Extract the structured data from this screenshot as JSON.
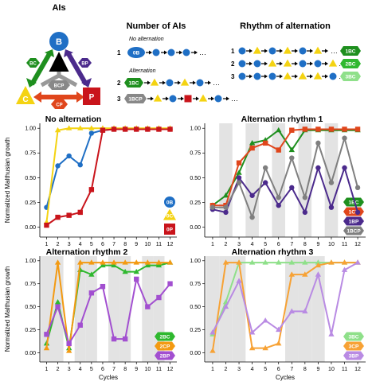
{
  "panels_header": {
    "ais_title": "AIs",
    "number_title": "Number of AIs",
    "rhythm_title": "Rhythm of alternation",
    "no_alternation": "No alternation",
    "alternation": "Alternation",
    "row_numbers": [
      "1",
      "2",
      "3"
    ],
    "ais_nodes": {
      "B": "B",
      "C": "C",
      "P": "P",
      "BC": "BC",
      "BP": "BP",
      "CP": "CP",
      "BCP": "BCP"
    },
    "number_badges": [
      "0B",
      "1BC",
      "1BCP"
    ],
    "rhythm_badges": [
      "1BC",
      "2BC",
      "3BC"
    ]
  },
  "colors": {
    "B": "#1f6fc5",
    "C": "#f4d312",
    "P": "#c9141b",
    "BC1": "#1e8f1e",
    "CP1": "#e0461c",
    "BP1": "#4b2a8c",
    "BCP1": "#7f7f7f",
    "BC2": "#2fb82f",
    "CP2": "#f39a12",
    "BP2": "#a24fd0",
    "BC3": "#8fe08a",
    "CP3": "#f7a235",
    "BP3": "#b98be3",
    "shade": "#e3e3e3"
  },
  "chart_data": [
    {
      "type": "line",
      "title": "No alternation",
      "xlabel": "",
      "ylabel": "Normalized Malthusian growth",
      "x": [
        1,
        2,
        3,
        4,
        5,
        6,
        7,
        8,
        9,
        10,
        11,
        12
      ],
      "ylim": [
        -0.1,
        1.05
      ],
      "yticks": [
        0.0,
        0.25,
        0.5,
        0.75,
        1.0
      ],
      "shaded_cycles": [],
      "series": [
        {
          "name": "0B",
          "color_key": "B",
          "marker": "circle",
          "values": [
            0.2,
            0.62,
            0.72,
            0.63,
            0.95,
            0.98,
            0.99,
            0.99,
            0.99,
            0.99,
            0.99,
            0.99
          ]
        },
        {
          "name": "0C",
          "color_key": "C",
          "marker": "triangle",
          "values": [
            0.05,
            0.98,
            1.0,
            1.0,
            1.0,
            1.0,
            1.0,
            1.0,
            1.0,
            1.0,
            1.0,
            1.0
          ]
        },
        {
          "name": "0P",
          "color_key": "P",
          "marker": "square",
          "values": [
            0.02,
            0.1,
            0.12,
            0.15,
            0.38,
            0.98,
            0.99,
            0.99,
            0.99,
            0.99,
            0.99,
            0.99
          ]
        }
      ]
    },
    {
      "type": "line",
      "title": "Alternation rhythm 1",
      "xlabel": "",
      "ylabel": "",
      "x": [
        1,
        2,
        3,
        4,
        5,
        6,
        7,
        8,
        9,
        10,
        11,
        12
      ],
      "ylim": [
        -0.1,
        1.05
      ],
      "yticks": [
        0.0,
        0.25,
        0.5,
        0.75,
        1.0
      ],
      "shaded_cycles": [
        2,
        4,
        6,
        8,
        10
      ],
      "series": [
        {
          "name": "1BC",
          "color_key": "BC1",
          "marker": "triangle",
          "values": [
            0.22,
            0.32,
            0.55,
            0.85,
            0.88,
            0.98,
            0.78,
            0.98,
            0.98,
            0.98,
            0.98,
            0.98
          ]
        },
        {
          "name": "1CP",
          "color_key": "CP1",
          "marker": "square",
          "values": [
            0.22,
            0.22,
            0.65,
            0.8,
            0.85,
            0.78,
            0.98,
            0.99,
            0.99,
            0.99,
            0.99,
            0.99
          ]
        },
        {
          "name": "1BP",
          "color_key": "BP1",
          "marker": "circle",
          "values": [
            0.18,
            0.15,
            0.5,
            0.32,
            0.45,
            0.22,
            0.4,
            0.15,
            0.6,
            0.2,
            0.6,
            0.15
          ]
        },
        {
          "name": "1BCP",
          "color_key": "BCP1",
          "marker": "circle",
          "values": [
            0.2,
            0.2,
            0.45,
            0.1,
            0.6,
            0.3,
            0.7,
            0.3,
            0.85,
            0.45,
            0.9,
            0.4
          ]
        }
      ]
    },
    {
      "type": "line",
      "title": "Alternation rhythm 2",
      "xlabel": "Cycles",
      "ylabel": "Normalized Malthusian growth",
      "x": [
        1,
        2,
        3,
        4,
        5,
        6,
        7,
        8,
        9,
        10,
        11,
        12
      ],
      "ylim": [
        -0.1,
        1.05
      ],
      "yticks": [
        0.0,
        0.25,
        0.5,
        0.75,
        1.0
      ],
      "shaded_cycles": [
        1,
        2,
        4,
        5,
        7,
        8,
        10,
        11
      ],
      "series": [
        {
          "name": "2BC",
          "color_key": "BC2",
          "marker": "triangle",
          "values": [
            0.1,
            0.55,
            0.05,
            0.9,
            0.85,
            0.95,
            0.95,
            0.88,
            0.88,
            0.95,
            0.95,
            0.98
          ]
        },
        {
          "name": "2CP",
          "color_key": "CP2",
          "marker": "triangle",
          "values": [
            0.05,
            0.98,
            0.02,
            0.98,
            0.98,
            0.98,
            0.98,
            0.98,
            0.98,
            0.98,
            0.98,
            0.98
          ]
        },
        {
          "name": "2BP",
          "color_key": "BP2",
          "marker": "square",
          "values": [
            0.2,
            0.5,
            0.1,
            0.3,
            0.65,
            0.72,
            0.15,
            0.15,
            0.8,
            0.5,
            0.6,
            0.75
          ]
        }
      ]
    },
    {
      "type": "line",
      "title": "Alternation rhythm 3",
      "xlabel": "Cycles",
      "ylabel": "",
      "x": [
        1,
        2,
        3,
        4,
        5,
        6,
        7,
        8,
        9,
        10,
        11,
        12
      ],
      "ylim": [
        -0.1,
        1.05
      ],
      "yticks": [
        0.0,
        0.25,
        0.5,
        0.75,
        1.0
      ],
      "shaded_cycles": [
        1,
        2,
        3,
        7,
        8,
        9
      ],
      "series": [
        {
          "name": "3BC",
          "color_key": "BC3",
          "marker": "triangle",
          "values": [
            0.2,
            0.55,
            0.98,
            0.98,
            0.98,
            0.98,
            0.98,
            0.98,
            0.98,
            0.98,
            0.98,
            0.98
          ]
        },
        {
          "name": "3CP",
          "color_key": "CP3",
          "marker": "triangle",
          "values": [
            0.02,
            0.98,
            0.98,
            0.05,
            0.05,
            0.1,
            0.85,
            0.85,
            0.95,
            0.98,
            0.98,
            0.98
          ]
        },
        {
          "name": "3BP",
          "color_key": "BP3",
          "marker": "triangle",
          "values": [
            0.22,
            0.5,
            0.78,
            0.22,
            0.35,
            0.25,
            0.45,
            0.45,
            0.85,
            0.2,
            0.9,
            0.98
          ]
        }
      ]
    }
  ]
}
